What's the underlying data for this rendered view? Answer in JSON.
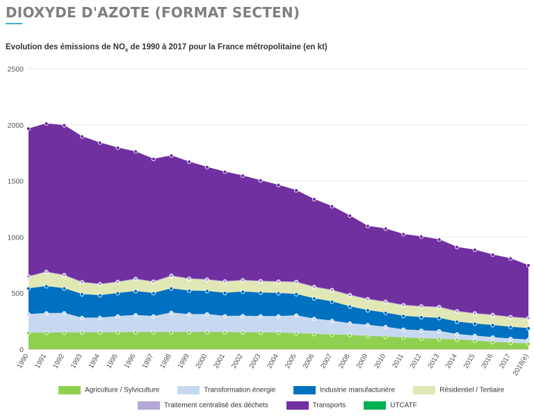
{
  "page": {
    "title": "DIOXYDE D'AZOTE (FORMAT SECTEN)",
    "chart_title_prefix": "Evolution des émissions de NO",
    "chart_title_sub": "x",
    "chart_title_suffix": " de 1990 à 2017 pour la France métropolitaine (en kt)"
  },
  "chart_data": {
    "type": "area",
    "stacked": true,
    "title": "Evolution des émissions de NOx de 1990 à 2017 pour la France métropolitaine (en kt)",
    "xlabel": "",
    "ylabel": "",
    "ylim": [
      0,
      2500
    ],
    "yticks": [
      0,
      500,
      1000,
      1500,
      2000,
      2500
    ],
    "grid": true,
    "legend_position": "bottom",
    "categories": [
      "1990",
      "1991",
      "1992",
      "1993",
      "1994",
      "1995",
      "1996",
      "1997",
      "1998",
      "1999",
      "2000",
      "2001",
      "2002",
      "2003",
      "2004",
      "2005",
      "2006",
      "2007",
      "2008",
      "2009",
      "2010",
      "2011",
      "2012",
      "2013",
      "2014",
      "2015",
      "2016",
      "2017",
      "2018(e)"
    ],
    "series": [
      {
        "name": "Agriculture / Sylviculture",
        "color": "#90d050",
        "values": [
          145,
          145,
          146,
          147,
          148,
          148,
          150,
          150,
          150,
          150,
          150,
          149,
          148,
          147,
          146,
          140,
          134,
          128,
          125,
          116,
          110,
          102,
          94,
          90,
          84,
          74,
          63,
          55,
          48
        ]
      },
      {
        "name": "Transformation énergie",
        "color": "#c6d9f0",
        "values": [
          165,
          175,
          175,
          132,
          131,
          145,
          153,
          143,
          175,
          160,
          162,
          146,
          148,
          146,
          147,
          160,
          137,
          125,
          104,
          100,
          88,
          73,
          72,
          71,
          50,
          45,
          42,
          38,
          36
        ]
      },
      {
        "name": "Industrie manufacturière",
        "color": "#0070c0",
        "values": [
          230,
          240,
          220,
          210,
          200,
          205,
          213,
          205,
          215,
          210,
          205,
          205,
          215,
          210,
          205,
          190,
          180,
          170,
          150,
          130,
          125,
          120,
          118,
          116,
          110,
          108,
          108,
          104,
          102
        ]
      },
      {
        "name": "Résidentiel / Tertiaire",
        "color": "#e2e8b5",
        "values": [
          105,
          125,
          115,
          105,
          97,
          98,
          106,
          100,
          110,
          105,
          100,
          100,
          100,
          100,
          100,
          105,
          100,
          100,
          100,
          96,
          96,
          94,
          94,
          95,
          90,
          88,
          88,
          86,
          86
        ]
      },
      {
        "name": "Traitement centralisé des déchets",
        "color": "#b4a7d6",
        "values": [
          5,
          5,
          5,
          5,
          5,
          5,
          5,
          5,
          5,
          5,
          5,
          5,
          5,
          5,
          5,
          5,
          5,
          5,
          5,
          5,
          5,
          5,
          5,
          5,
          5,
          5,
          5,
          5,
          5
        ]
      },
      {
        "name": "Transports",
        "color": "#7030a0",
        "values": [
          1315,
          1320,
          1334,
          1296,
          1259,
          1194,
          1134,
          1092,
          1070,
          1040,
          1000,
          975,
          930,
          895,
          860,
          815,
          780,
          745,
          705,
          650,
          650,
          630,
          620,
          600,
          570,
          565,
          536,
          520,
          470
        ]
      },
      {
        "name": "UTCATF",
        "color": "#00b050",
        "values": [
          0,
          0,
          0,
          0,
          0,
          0,
          0,
          0,
          0,
          0,
          0,
          0,
          0,
          0,
          0,
          0,
          0,
          0,
          0,
          0,
          0,
          0,
          0,
          0,
          0,
          0,
          0,
          0,
          0
        ]
      }
    ]
  },
  "legend": {
    "row1": [
      "Agriculture / Sylviculture",
      "Transformation énergie",
      "Industrie manufacturière",
      "Résidentiel / Tertiaire"
    ],
    "row2": [
      "Traitement centralisé des déchets",
      "Transports",
      "UTCATF"
    ]
  }
}
